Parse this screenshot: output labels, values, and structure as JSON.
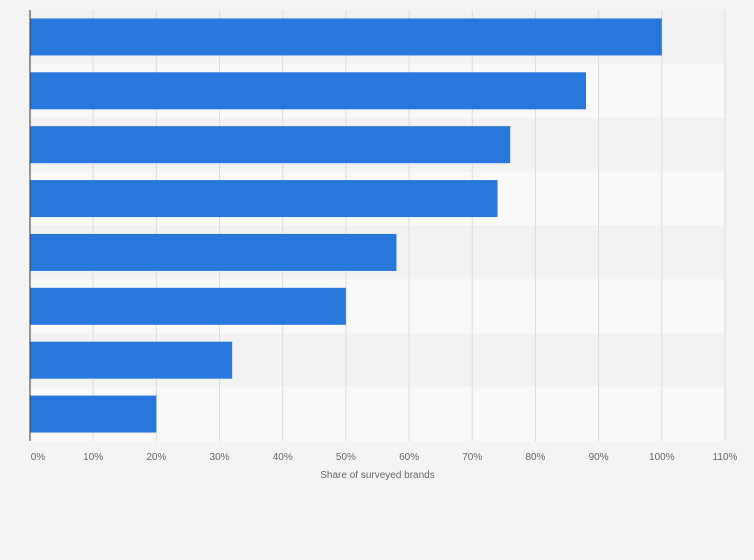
{
  "chart_data": {
    "type": "bar",
    "orientation": "horizontal",
    "categories": [
      "",
      "",
      "",
      "",
      "",
      "",
      "",
      ""
    ],
    "values": [
      100,
      88,
      76,
      74,
      58,
      50,
      32,
      20
    ],
    "xlabel": "Share of surveyed brands",
    "ylabel": "",
    "xlim": [
      0,
      110
    ],
    "xticks": [
      "0%",
      "10%",
      "20%",
      "30%",
      "40%",
      "50%",
      "60%",
      "70%",
      "80%",
      "90%",
      "100%",
      "110%"
    ],
    "grid": true,
    "legend": "none",
    "colors": {
      "bar": "#2878dc",
      "background": "#f4f4f4",
      "band_light": "#f9f9f9",
      "band_dark": "#f2f2f2",
      "gridline": "#dcdcdc",
      "axis": "#333333",
      "label": "#666666"
    }
  }
}
